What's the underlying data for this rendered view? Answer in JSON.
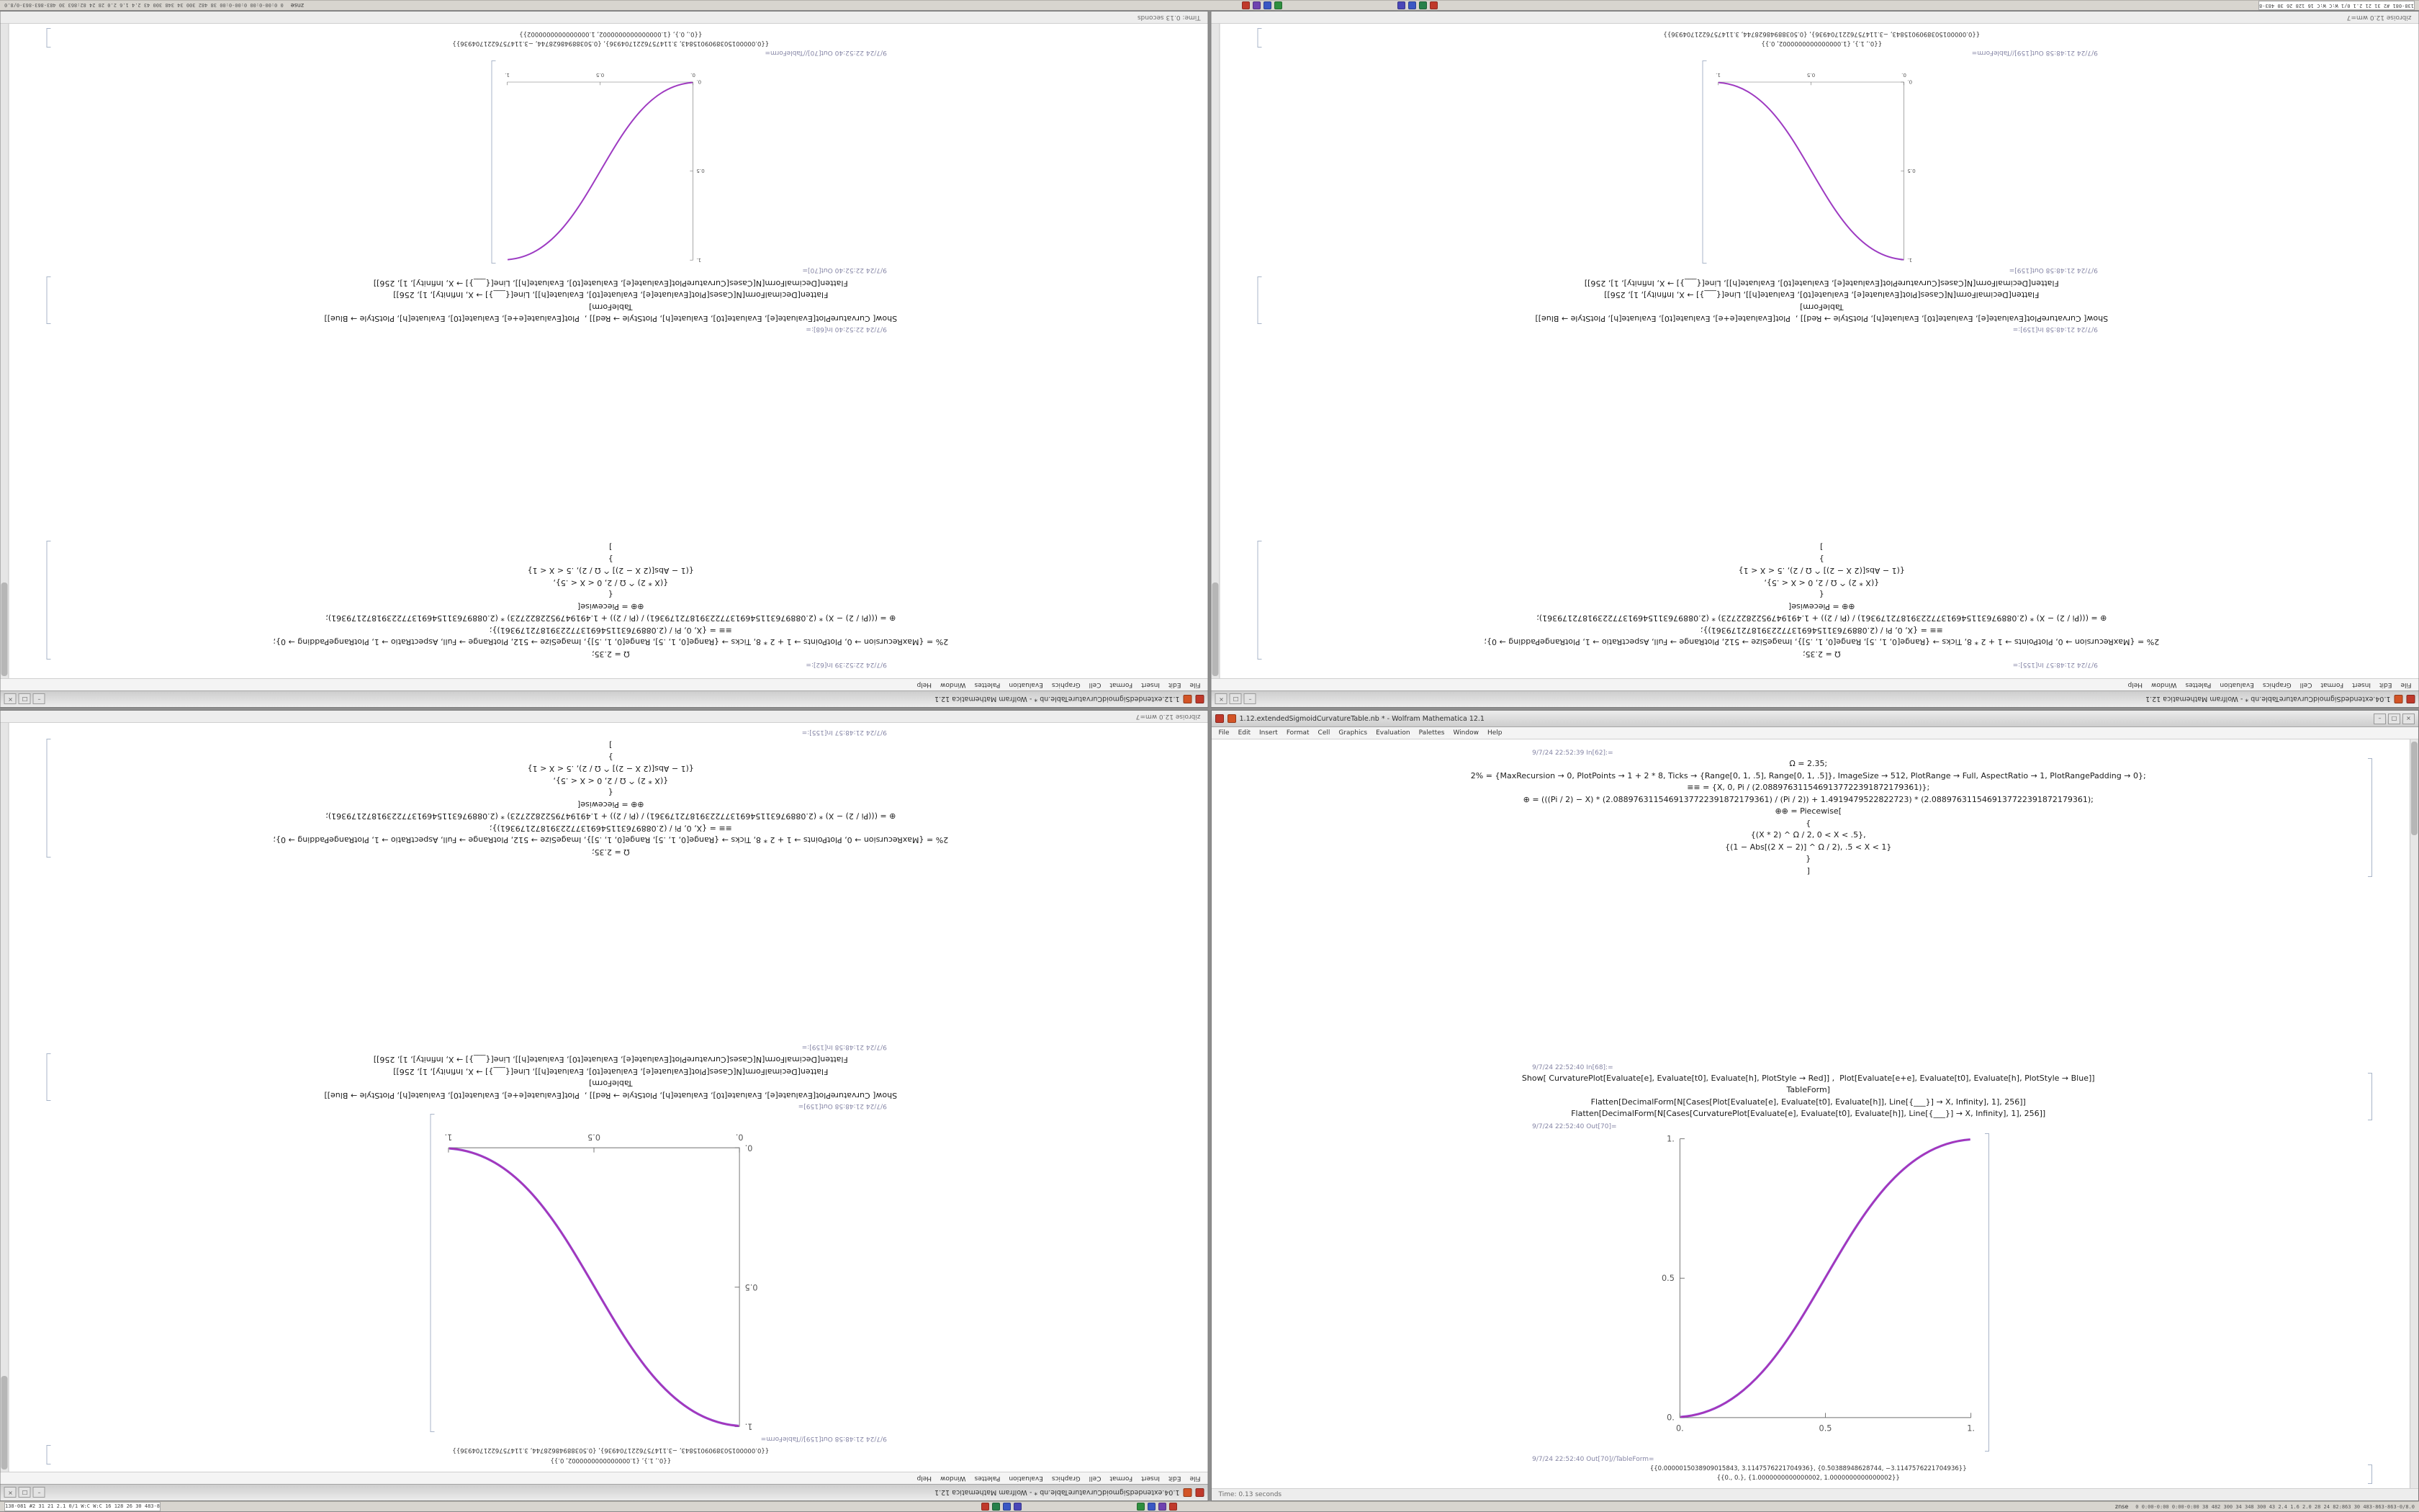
{
  "desktop": {
    "bg": "#8f8f8f"
  },
  "taskbar": {
    "left_text": "138-081 #2 31 21 2.1 0/1 W:C W:C 16 128 26 30 483-863-863-0/8.0",
    "tray_label": "znse",
    "right_text": "0 0:00-0:00 0:00-0:00 38 482 300 34 348 300 43 2.4 1.6 2.0 28 24 82:863 30 483-863-863-0/8.0",
    "icon_groups": [
      {
        "name": "app-group-1",
        "icons": [
          {
            "name": "app-icon-red",
            "color": "#c0392b"
          },
          {
            "name": "app-icon-green",
            "color": "#27804a"
          },
          {
            "name": "app-icon-blue",
            "color": "#3a57c4"
          },
          {
            "name": "app-icon-indigo",
            "color": "#4a47b8"
          }
        ]
      },
      {
        "name": "app-group-2",
        "icons": [
          {
            "name": "app-icon-green-2",
            "color": "#2f8f3f"
          },
          {
            "name": "app-icon-blue-2",
            "color": "#3a57c4"
          },
          {
            "name": "app-icon-violet",
            "color": "#6f42b0"
          },
          {
            "name": "app-icon-red-2",
            "color": "#c0392b"
          }
        ]
      }
    ]
  },
  "window_chrome": {
    "menu_items": [
      "File",
      "Edit",
      "Insert",
      "Format",
      "Cell",
      "Graphics",
      "Evaluation",
      "Palettes",
      "Window",
      "Help"
    ],
    "buttons": [
      "–",
      "□",
      "×"
    ],
    "app_suffix": "Wolfram Mathematica 12.1"
  },
  "grid": [
    {
      "pos": "top-left",
      "content": "A",
      "flipped": true,
      "reversed": false,
      "plot_size": "small"
    },
    {
      "pos": "top-right",
      "content": "B",
      "flipped": true,
      "reversed": false,
      "plot_size": "small"
    },
    {
      "pos": "bottom-left",
      "content": "B",
      "flipped": true,
      "reversed": true,
      "plot_size": "large"
    },
    {
      "pos": "bottom-right",
      "content": "A",
      "flipped": false,
      "reversed": false,
      "plot_size": "large"
    }
  ],
  "windows": {
    "A": {
      "title": "1.12.extendedSigmoidCurvatureTable.nb * - Wolfram Mathematica 12.1",
      "in_label_1": "9/7/24 22:52:39 In[62]:=",
      "code1": [
        "Ω = 2.35;",
        "2% = {MaxRecursion → 0, PlotPoints → 1 + 2 * 8, Ticks → {Range[0, 1, .5], Range[0, 1, .5]}, ImageSize → 512, PlotRange → Full, AspectRatio → 1, PlotRangePadding → 0};",
        "≡≡ = {X, 0, Pi / (2.0889763115469137722391872179361)};",
        "⊕ = (((Pi / 2) − X) * (2.0889763115469137722391872179361) / (Pi / 2)) + 1.4919479522822723) * (2.0889763115469137722391872179361);",
        "⊕⊕ = Piecewise[",
        "{",
        "{(X * 2) ^ Ω / 2, 0 < X < .5},",
        "{(1 − Abs[(2 X − 2)] ^ Ω / 2), .5 < X < 1}",
        "}",
        "]"
      ],
      "in_label_2": "9/7/24 22:52:40 In[68]:=",
      "code2": [
        "Show[ CurvaturePlot[Evaluate[e], Evaluate[t0], Evaluate[h], PlotStyle → Red]] ,  Plot[Evaluate[e+e], Evaluate[t0], Evaluate[h], PlotStyle → Blue]]",
        "TableForm]",
        "Flatten[DecimalForm[N[Cases[Plot[Evaluate[e], Evaluate[t0], Evaluate[h]], Line[{___}] → X, Infinity], 1], 256]]",
        "Flatten[DecimalForm[N[Cases[CurvaturePlot[Evaluate[e], Evaluate[t0], Evaluate[h]], Line[{___}] → X, Infinity], 1], 256]]"
      ],
      "out_label": "9/7/24 22:52:40 Out[70]=",
      "table_label": "9/7/24 22:52:40 Out[70]//TableForm=",
      "numbers": [
        "{{0.0000015038909015843, 3.1147576221704936}, {0.50388948628744, −3.1147576221704936}}",
        "{{0., 0.}, {1.0000000000000002, 1.0000000000000002}}"
      ],
      "plot": {
        "direction": "increasing",
        "color1": "#b12fae",
        "color2": "#7a2fd0",
        "x_ticks": [
          "0.",
          "0.5",
          "1."
        ],
        "y_ticks": [
          "0.",
          "0.5",
          "1."
        ],
        "x_range": [
          0,
          1
        ],
        "y_range": [
          0,
          1
        ]
      },
      "status_left": "Time: 0.13 seconds",
      "status_right": ""
    },
    "B": {
      "title": "1.04.extendedSigmoidCurvatureTable.nb * - Wolfram Mathematica 12.1",
      "in_label_1": "9/7/24 21:48:57 In[155]:=",
      "code1": [
        "Ω = 2.35;",
        "2% = {MaxRecursion → 0, PlotPoints → 1 + 2 * 8, Ticks → {Range[0, 1, .5], Range[0, 1, .5]}, ImageSize → 512, PlotRange → Full, AspectRatio → 1, PlotRangePadding → 0};",
        "≡≡ = {X, 0, Pi / (2.0889763115469137722391872179361)};",
        "⊕ = (((Pi / 2) − X) * (2.0889763115469137722391872179361) / (Pi / 2)) + 1.4919479522822723) * (2.0889763115469137722391872179361);",
        "⊕⊕ = Piecewise[",
        "{",
        "{(X * 2) ^ Ω / 2, 0 < X < .5},",
        "{(1 − Abs[(2 X − 2)] ^ Ω / 2), .5 < X < 1}",
        "}",
        "]"
      ],
      "in_label_2": "9/7/24 21:48:58 In[159]:=",
      "code2": [
        "Show[ CurvaturePlot[Evaluate[e], Evaluate[t0], Evaluate[h], PlotStyle → Red]] ,  Plot[Evaluate[e+e], Evaluate[t0], Evaluate[h], PlotStyle → Blue]]",
        "TableForm]",
        "Flatten[DecimalForm[N[Cases[Plot[Evaluate[e], Evaluate[t0], Evaluate[h]], Line[{___}] → X, Infinity], 1], 256]]",
        "Flatten[DecimalForm[N[Cases[CurvaturePlot[Evaluate[e], Evaluate[t0], Evaluate[h]], Line[{___}] → X, Infinity], 1], 256]]"
      ],
      "out_label": "9/7/24 21:48:58 Out[159]=",
      "table_label": "9/7/24 21:48:58 Out[159]//TableForm=",
      "numbers": [
        "{{0., 1.}, {1.0000000000000002, 0.}}",
        "{{0.0000015038909015843, −3.1147576221704936}, {0.50388948628744, 3.1147576221704936}}"
      ],
      "plot": {
        "direction": "decreasing",
        "color1": "#b12fae",
        "color2": "#7a2fd0",
        "x_ticks": [
          "0.",
          "0.5",
          "1."
        ],
        "y_ticks": [
          "0.",
          "0.5",
          "1."
        ],
        "x_range": [
          0,
          1
        ],
        "y_range": [
          0,
          1
        ]
      },
      "status_left": "zibroise 12.0 wm=7",
      "status_right": ""
    }
  }
}
